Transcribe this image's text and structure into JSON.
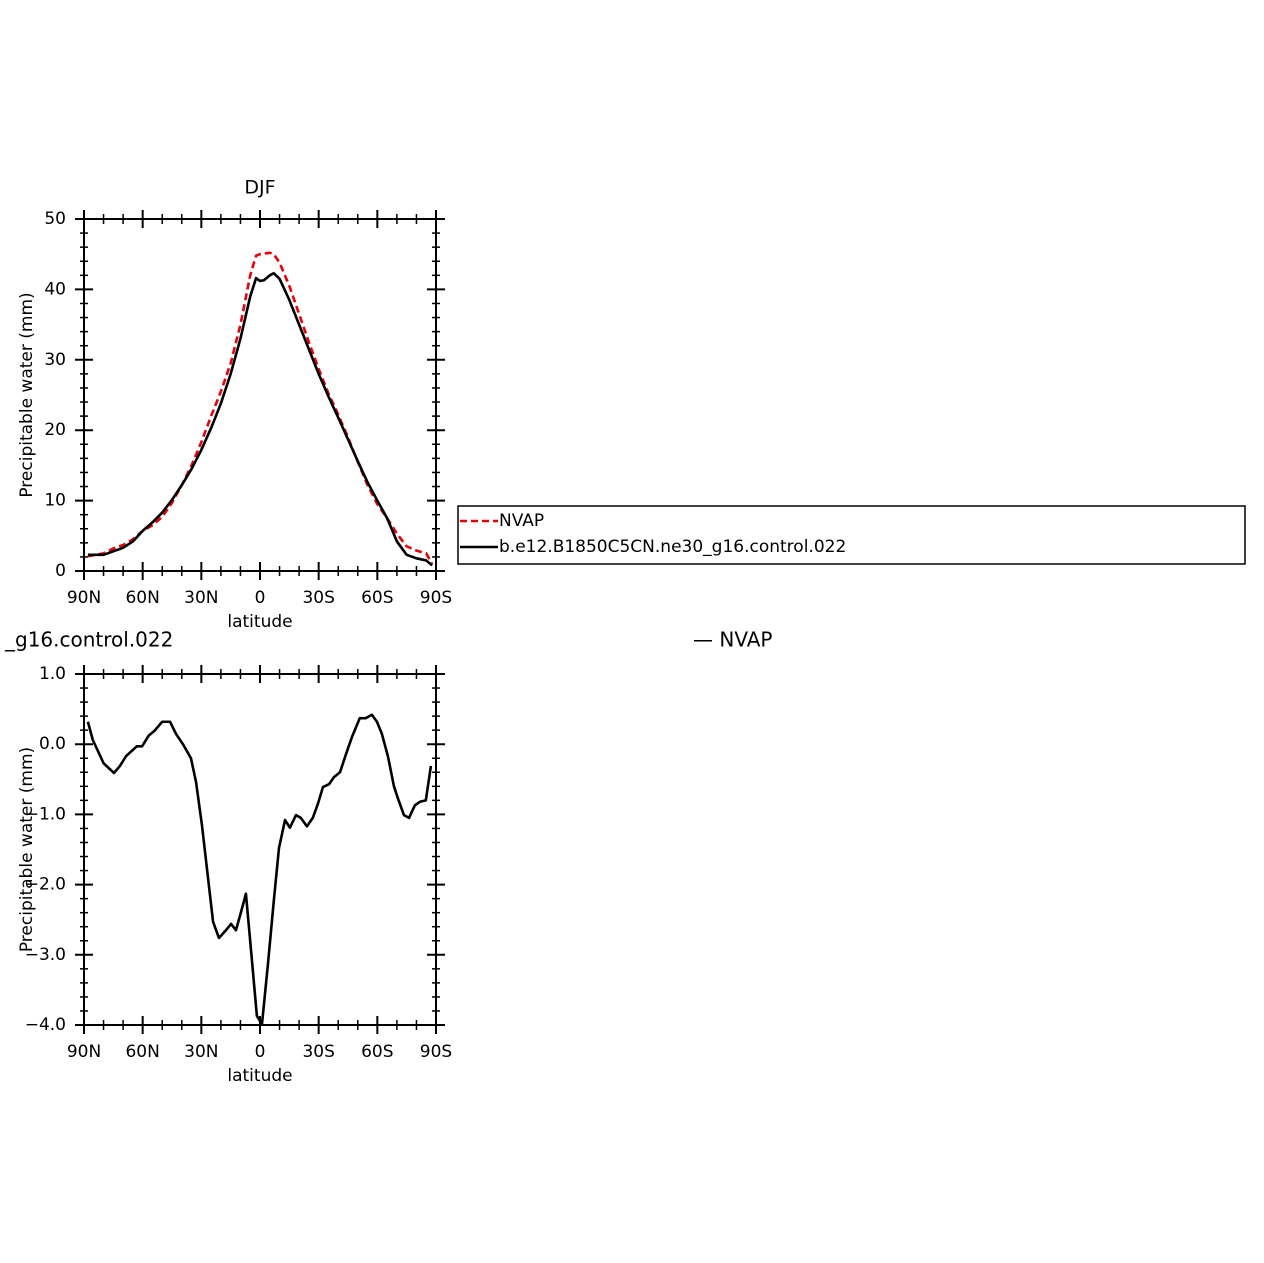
{
  "chart_data": [
    {
      "type": "line",
      "title": "DJF",
      "xlabel": "latitude",
      "ylabel": "Precipitable water (mm)",
      "x": [
        88,
        80,
        75,
        70,
        65,
        60,
        55,
        50,
        45,
        40,
        35,
        30,
        25,
        20,
        15,
        10,
        5,
        2,
        0,
        -2,
        -5,
        -7,
        -10,
        -15,
        -20,
        -25,
        -30,
        -35,
        -40,
        -45,
        -50,
        -55,
        -60,
        -65,
        -70,
        -75,
        -80,
        -85,
        -88
      ],
      "series": [
        {
          "name": "NVAP",
          "color": "#e8000b",
          "dash": true,
          "values": [
            2.1,
            2.5,
            3.2,
            3.7,
            4.5,
            5.7,
            6.5,
            7.7,
            9.7,
            12.2,
            15.0,
            18.3,
            22.0,
            25.5,
            29.5,
            35,
            42,
            44.8,
            45.0,
            45.1,
            45.2,
            45.0,
            43.8,
            40.5,
            36.5,
            32.5,
            28.7,
            25.2,
            22.2,
            19.0,
            15.5,
            12.2,
            9.5,
            7.5,
            5.3,
            3.5,
            2.9,
            2.5,
            1.0
          ]
        },
        {
          "name": "b.e12.B1850C5CN.ne30_g16.control.022",
          "color": "#000000",
          "dash": false,
          "values": [
            2.3,
            2.3,
            2.8,
            3.3,
            4.2,
            5.7,
            6.9,
            8.3,
            10.1,
            12.2,
            14.5,
            17.2,
            20.3,
            23.8,
            28.0,
            33,
            39,
            41.6,
            41.2,
            41.3,
            42.0,
            42.3,
            41.5,
            38.5,
            35,
            31.5,
            28.0,
            24.8,
            21.8,
            18.7,
            15.6,
            12.6,
            10.0,
            7.5,
            4.2,
            2.3,
            1.8,
            1.5,
            0.8
          ]
        }
      ],
      "xlim": [
        90,
        -90
      ],
      "xticks": [
        {
          "value": 90,
          "label": "90N"
        },
        {
          "value": 60,
          "label": "60N"
        },
        {
          "value": 30,
          "label": "30N"
        },
        0,
        {
          "value": -30,
          "label": "30S"
        },
        {
          "value": -60,
          "label": "60S"
        },
        {
          "value": -90,
          "label": "90S"
        }
      ],
      "ylim": [
        0,
        50
      ],
      "yticks": [
        0,
        10,
        20,
        30,
        40,
        50
      ],
      "legend": "right"
    },
    {
      "type": "line",
      "left_title": "_g16.control.022",
      "right_title": "— NVAP",
      "xlabel": "latitude",
      "ylabel": "Precipitable water (mm)",
      "x": [
        88,
        85.5,
        80,
        74.7,
        71.6,
        68.5,
        63,
        60.3,
        57,
        54,
        50,
        46,
        43,
        39.4,
        35.3,
        32.7,
        29.7,
        26.6,
        24,
        21,
        17.4,
        14.8,
        12.3,
        9.7,
        7.2,
        4.6,
        1.6,
        -1,
        -4,
        -7.1,
        -9.7,
        -12.8,
        -15.3,
        -18.4,
        -20.9,
        -24,
        -27,
        -29.6,
        -32.2,
        -35.3,
        -37.8,
        -40.9,
        -44,
        -47,
        -51,
        -54,
        -57.2,
        -59.8,
        -62.3,
        -65.4,
        -68.5,
        -70.5,
        -73.6,
        -76.2,
        -79.2,
        -81.8,
        -84.8,
        -87.4
      ],
      "series": [
        {
          "color": "#000000",
          "dash": false,
          "values": [
            0.32,
            0.06,
            -0.27,
            -0.41,
            -0.31,
            -0.17,
            -0.03,
            -0.03,
            0.12,
            0.19,
            0.32,
            0.32,
            0.15,
            0.0,
            -0.2,
            -0.54,
            -1.15,
            -1.9,
            -2.53,
            -2.76,
            -2.65,
            -2.56,
            -2.65,
            -2.39,
            -2.13,
            -2.93,
            -3.87,
            -3.99,
            -3.15,
            -2.22,
            -1.48,
            -1.08,
            -1.19,
            -1.01,
            -1.05,
            -1.17,
            -1.05,
            -0.85,
            -0.61,
            -0.57,
            -0.47,
            -0.4,
            -0.14,
            0.1,
            0.37,
            0.37,
            0.42,
            0.32,
            0.15,
            -0.17,
            -0.6,
            -0.77,
            -1.01,
            -1.05,
            -0.87,
            -0.82,
            -0.8,
            -0.31
          ]
        }
      ],
      "xlim": [
        90,
        -90
      ],
      "xticks": [
        {
          "value": 90,
          "label": "90N"
        },
        {
          "value": 60,
          "label": "60N"
        },
        {
          "value": 30,
          "label": "30N"
        },
        0,
        {
          "value": -30,
          "label": "30S"
        },
        {
          "value": -60,
          "label": "60S"
        },
        {
          "value": -90,
          "label": "90S"
        }
      ],
      "ylim": [
        -4,
        1
      ],
      "yticks": [
        {
          "value": 1,
          "label": "1.0"
        },
        {
          "value": 0,
          "label": "0.0"
        },
        {
          "value": -1,
          "label": "−1.0"
        },
        {
          "value": -2,
          "label": "−2.0"
        },
        {
          "value": -3,
          "label": "−3.0"
        },
        {
          "value": -4,
          "label": "−4.0"
        }
      ]
    }
  ]
}
